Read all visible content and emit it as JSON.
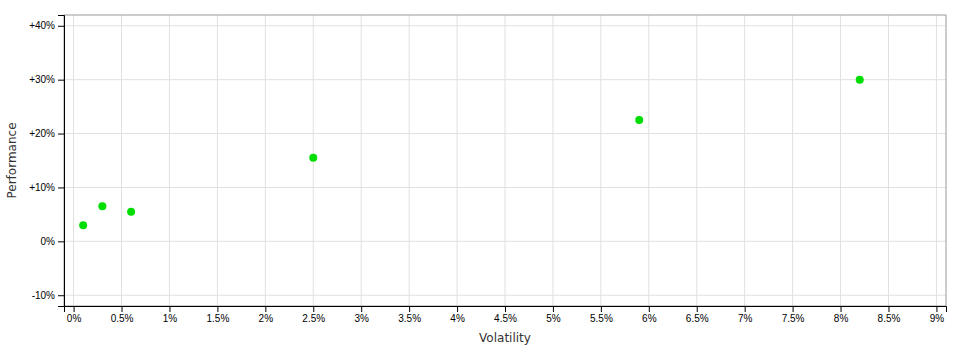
{
  "chart_data": {
    "type": "scatter",
    "x": [
      0.001,
      0.003,
      0.006,
      0.025,
      0.059,
      0.082
    ],
    "values": [
      0.03,
      0.065,
      0.055,
      0.155,
      0.225,
      0.3
    ],
    "color": "#00dd00",
    "xlabel": "Volatility",
    "ylabel": "Performance",
    "xlim": [
      -0.001,
      0.091
    ],
    "ylim": [
      -0.12,
      0.42
    ],
    "xticks": [
      {
        "value": 0.0,
        "label": "0%"
      },
      {
        "value": 0.005,
        "label": "0.5%"
      },
      {
        "value": 0.01,
        "label": "1%"
      },
      {
        "value": 0.015,
        "label": "1.5%"
      },
      {
        "value": 0.02,
        "label": "2%"
      },
      {
        "value": 0.025,
        "label": "2.5%"
      },
      {
        "value": 0.03,
        "label": "3%"
      },
      {
        "value": 0.035,
        "label": "3.5%"
      },
      {
        "value": 0.04,
        "label": "4%"
      },
      {
        "value": 0.045,
        "label": "4.5%"
      },
      {
        "value": 0.05,
        "label": "5%"
      },
      {
        "value": 0.055,
        "label": "5.5%"
      },
      {
        "value": 0.06,
        "label": "6%"
      },
      {
        "value": 0.065,
        "label": "6.5%"
      },
      {
        "value": 0.07,
        "label": "7%"
      },
      {
        "value": 0.075,
        "label": "7.5%"
      },
      {
        "value": 0.08,
        "label": "8%"
      },
      {
        "value": 0.085,
        "label": "8.5%"
      },
      {
        "value": 0.09,
        "label": "9%"
      }
    ],
    "yticks": [
      {
        "value": -0.1,
        "label": "-10%"
      },
      {
        "value": 0.0,
        "label": "0%"
      },
      {
        "value": 0.1,
        "label": "+10%"
      },
      {
        "value": 0.2,
        "label": "+20%"
      },
      {
        "value": 0.3,
        "label": "+30%"
      },
      {
        "value": 0.4,
        "label": "+40%"
      }
    ],
    "grid": true
  }
}
